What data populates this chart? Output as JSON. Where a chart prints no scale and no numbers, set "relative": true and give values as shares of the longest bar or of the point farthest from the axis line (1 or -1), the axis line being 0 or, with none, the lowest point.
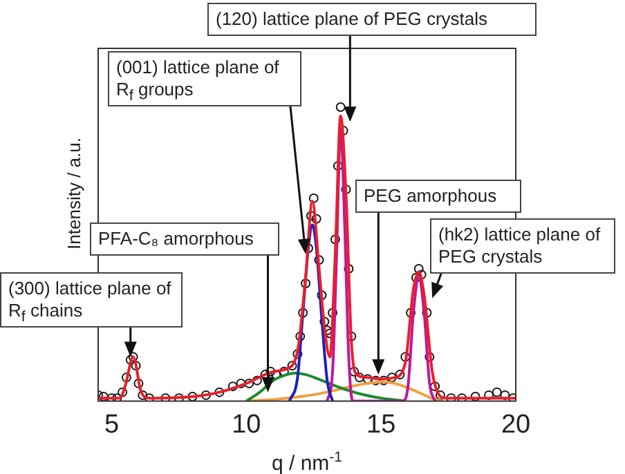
{
  "chart_data": {
    "type": "scatter",
    "xlabel": "q / nm$^{-1}$",
    "ylabel": "Intensity / a.u.",
    "relative": true,
    "xlim": [
      4.5,
      20
    ],
    "xticks": [
      5,
      10,
      15,
      20
    ],
    "grid": false,
    "legend": false,
    "series": [
      {
        "type": "scatter",
        "marker": "circle",
        "color": "#1a1a1a",
        "x": [
          4.5,
          4.7,
          5.0,
          5.2,
          5.4,
          5.55,
          5.7,
          5.8,
          5.9,
          6.0,
          6.15,
          6.4,
          7.0,
          7.5,
          8.0,
          8.5,
          9.0,
          9.5,
          9.8,
          10.1,
          10.4,
          10.7,
          10.9,
          11.1,
          11.4,
          11.7,
          11.9,
          12.0,
          12.1,
          12.2,
          12.3,
          12.4,
          12.5,
          12.6,
          12.7,
          12.8,
          12.9,
          13.0,
          13.1,
          13.2,
          13.3,
          13.4,
          13.5,
          13.6,
          13.7,
          13.8,
          13.9,
          14.0,
          14.2,
          14.5,
          14.8,
          15.1,
          15.4,
          15.7,
          15.9,
          16.1,
          16.3,
          16.4,
          16.5,
          16.7,
          16.8,
          17.0,
          17.2,
          17.6,
          18.0,
          18.5,
          19.0,
          19.3,
          19.6,
          19.9
        ],
        "values": [
          0.02,
          0.015,
          0.01,
          0.01,
          0.03,
          0.08,
          0.14,
          0.15,
          0.12,
          0.06,
          0.02,
          0.01,
          0.01,
          0.01,
          0.015,
          0.02,
          0.03,
          0.05,
          0.06,
          0.06,
          0.07,
          0.09,
          0.1,
          0.09,
          0.1,
          0.12,
          0.16,
          0.22,
          0.3,
          0.4,
          0.52,
          0.63,
          0.69,
          0.62,
          0.48,
          0.36,
          0.27,
          0.24,
          0.23,
          0.3,
          0.55,
          0.8,
          1.0,
          0.92,
          0.72,
          0.45,
          0.22,
          0.1,
          0.08,
          0.075,
          0.07,
          0.07,
          0.08,
          0.09,
          0.15,
          0.3,
          0.42,
          0.45,
          0.43,
          0.3,
          0.15,
          0.05,
          0.02,
          0.01,
          0.01,
          0.015,
          0.02,
          0.03,
          0.02,
          0.01
        ]
      },
      {
        "type": "line",
        "marker": "none",
        "color": "#e8202a",
        "x": [
          4.5,
          5.3,
          5.5,
          5.8,
          6.1,
          6.4,
          8,
          9,
          10,
          11,
          11.5,
          11.9,
          12.2,
          12.45,
          12.7,
          12.9,
          13.1,
          13.3,
          13.5,
          13.7,
          13.9,
          14.1,
          14.5,
          15,
          15.5,
          15.9,
          16.2,
          16.4,
          16.6,
          16.9,
          17.1,
          17.4,
          20
        ],
        "values": [
          0.01,
          0.01,
          0.05,
          0.15,
          0.03,
          0.01,
          0.015,
          0.03,
          0.06,
          0.1,
          0.11,
          0.17,
          0.42,
          0.68,
          0.45,
          0.25,
          0.15,
          0.5,
          0.97,
          0.7,
          0.2,
          0.09,
          0.08,
          0.075,
          0.08,
          0.13,
          0.38,
          0.44,
          0.36,
          0.1,
          0.03,
          0.01,
          0.01
        ]
      },
      {
        "type": "line",
        "marker": "none",
        "color": "#1f1fbf",
        "x": [
          11.6,
          11.9,
          12.1,
          12.3,
          12.45,
          12.6,
          12.8,
          13.0,
          13.2
        ],
        "values": [
          0,
          0.08,
          0.3,
          0.52,
          0.6,
          0.52,
          0.28,
          0.07,
          0
        ]
      },
      {
        "type": "line",
        "marker": "none",
        "color": "#c0189a",
        "x": [
          13.0,
          13.2,
          13.35,
          13.5,
          13.65,
          13.8,
          13.95,
          15.8,
          16.0,
          16.2,
          16.4,
          16.6,
          16.8,
          17.0
        ],
        "values": [
          0,
          0.1,
          0.5,
          0.93,
          0.6,
          0.15,
          0,
          0,
          0.05,
          0.3,
          0.42,
          0.3,
          0.06,
          0
        ]
      },
      {
        "type": "line",
        "marker": "none",
        "color": "#1e8a2e",
        "x": [
          10.0,
          10.5,
          11.0,
          11.5,
          11.8,
          12.2,
          12.8,
          13.5,
          14.2,
          15.0,
          15.9
        ],
        "values": [
          0,
          0.03,
          0.07,
          0.09,
          0.095,
          0.09,
          0.07,
          0.045,
          0.025,
          0.01,
          0
        ]
      },
      {
        "type": "line",
        "marker": "none",
        "color": "#f0a040",
        "x": [
          10.0,
          11,
          12,
          13,
          13.8,
          14.5,
          15.0,
          15.5,
          16.0,
          16.5,
          17.0,
          17.3
        ],
        "values": [
          0,
          0.005,
          0.015,
          0.03,
          0.048,
          0.06,
          0.065,
          0.06,
          0.045,
          0.025,
          0.005,
          0
        ]
      }
    ],
    "annotations": [
      {
        "text": "(120) lattice plane of PEG crystals",
        "x": 13.85,
        "y": 0.95
      },
      {
        "text": "(001) lattice plane of R$_{f}$ groups",
        "x": 12.2,
        "y": 0.5
      },
      {
        "text": "PFA-C₈ amorphous",
        "x": 10.8,
        "y": 0.03
      },
      {
        "text": "(300) lattice plane of R$_{f}$ chains",
        "x": 5.7,
        "y": 0.15
      },
      {
        "text": "PEG amorphous",
        "x": 14.9,
        "y": 0.09
      },
      {
        "text": "(hk2) lattice plane of PEG crystals",
        "x": 16.9,
        "y": 0.35
      }
    ]
  }
}
